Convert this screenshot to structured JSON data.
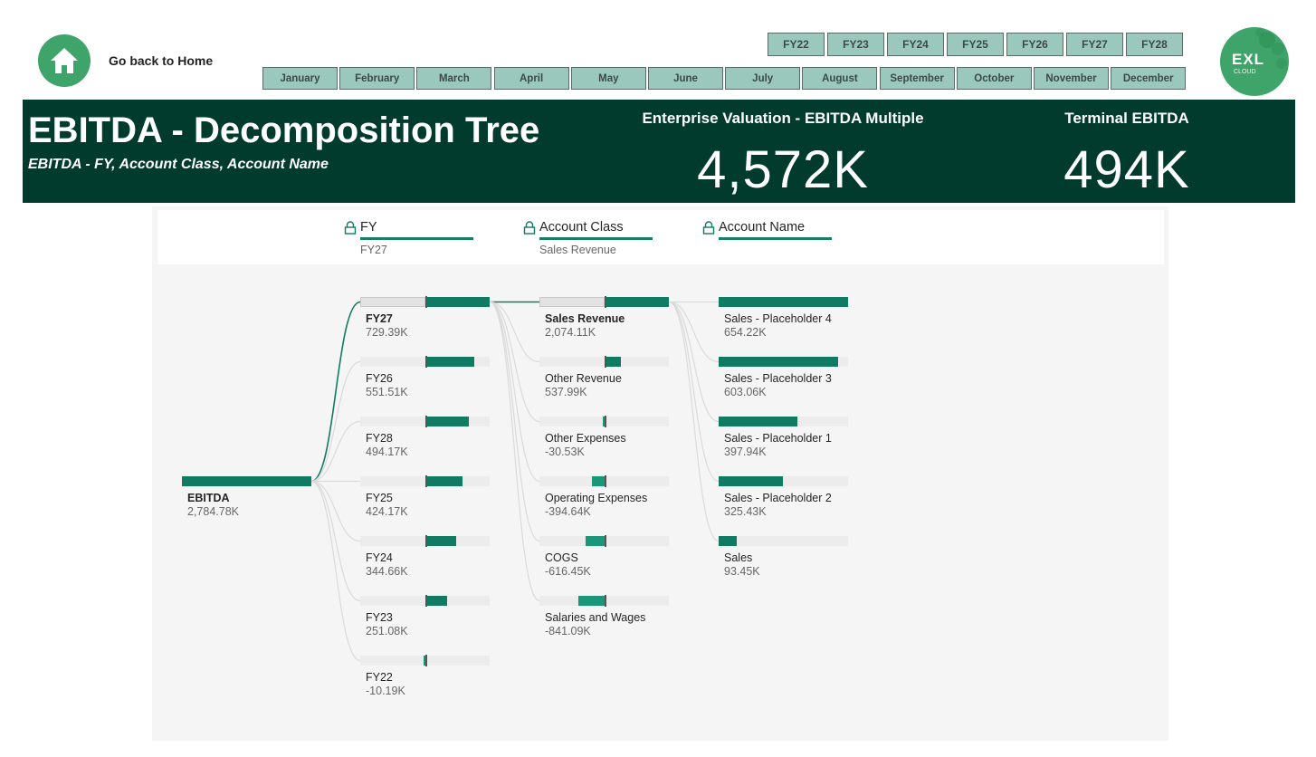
{
  "nav": {
    "home_label": "Go back to Home"
  },
  "fiscal_years": [
    "FY22",
    "FY23",
    "FY24",
    "FY25",
    "FY26",
    "FY27",
    "FY28"
  ],
  "months": [
    "January",
    "February",
    "March",
    "April",
    "May",
    "June",
    "July",
    "August",
    "September",
    "October",
    "November",
    "December"
  ],
  "logo": {
    "text": "EXL",
    "subtext": "CLOUD"
  },
  "banner": {
    "title": "EBITDA - Decomposition Tree",
    "subtitle": "EBITDA - FY, Account Class, Account Name",
    "kpis": [
      {
        "label": "Enterprise Valuation - EBITDA Multiple",
        "value": "4,572K"
      },
      {
        "label": "Terminal EBITDA",
        "value": "494K"
      }
    ]
  },
  "colors": {
    "accent": "#117a63",
    "dark_banner": "#003b2e",
    "slicer": "#9bc8bc",
    "brand_green": "#3ea46a"
  },
  "tree": {
    "levels": [
      {
        "title": "FY",
        "selected": "FY27"
      },
      {
        "title": "Account Class",
        "selected": "Sales Revenue"
      },
      {
        "title": "Account Name",
        "selected": ""
      }
    ],
    "root": {
      "name": "EBITDA",
      "value_label": "2,784.78K",
      "value": 2784.78
    },
    "columns": [
      [
        {
          "name": "FY27",
          "value_label": "729.39K",
          "value": 729.39,
          "selected": true
        },
        {
          "name": "FY26",
          "value_label": "551.51K",
          "value": 551.51
        },
        {
          "name": "FY28",
          "value_label": "494.17K",
          "value": 494.17
        },
        {
          "name": "FY25",
          "value_label": "424.17K",
          "value": 424.17
        },
        {
          "name": "FY24",
          "value_label": "344.66K",
          "value": 344.66
        },
        {
          "name": "FY23",
          "value_label": "251.08K",
          "value": 251.08
        },
        {
          "name": "FY22",
          "value_label": "-10.19K",
          "value": -10.19
        }
      ],
      [
        {
          "name": "Sales Revenue",
          "value_label": "2,074.11K",
          "value": 2074.11,
          "selected": true
        },
        {
          "name": "Other Revenue",
          "value_label": "537.99K",
          "value": 537.99
        },
        {
          "name": "Other Expenses",
          "value_label": "-30.53K",
          "value": -30.53
        },
        {
          "name": "Operating Expenses",
          "value_label": "-394.64K",
          "value": -394.64
        },
        {
          "name": "COGS",
          "value_label": "-616.45K",
          "value": -616.45
        },
        {
          "name": "Salaries and Wages",
          "value_label": "-841.09K",
          "value": -841.09
        }
      ],
      [
        {
          "name": "Sales - Placeholder 4",
          "value_label": "654.22K",
          "value": 654.22
        },
        {
          "name": "Sales - Placeholder 3",
          "value_label": "603.06K",
          "value": 603.06
        },
        {
          "name": "Sales - Placeholder 1",
          "value_label": "397.94K",
          "value": 397.94
        },
        {
          "name": "Sales - Placeholder 2",
          "value_label": "325.43K",
          "value": 325.43
        },
        {
          "name": "Sales",
          "value_label": "93.45K",
          "value": 93.45
        }
      ]
    ]
  }
}
